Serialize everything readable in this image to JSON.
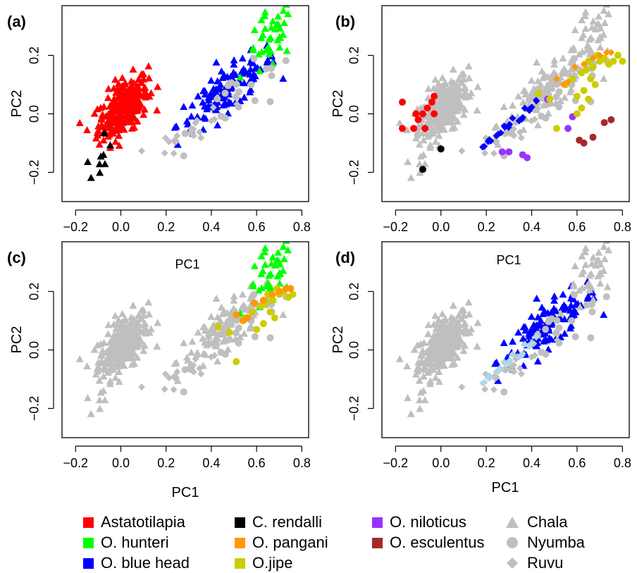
{
  "figure": {
    "panel_labels": [
      "(a)",
      "(b)",
      "(c)",
      "(d)"
    ],
    "x_axis_label": "PC1",
    "y_axis_label": "PC2",
    "x_ticks": [
      "−0.2",
      "0.0",
      "0.2",
      "0.4",
      "0.6",
      "0.8"
    ],
    "y_ticks": [
      "−0.2",
      "0.0",
      "0.2"
    ],
    "background_color": "#d3d3d3"
  },
  "legend": {
    "species": [
      {
        "name": "Astatotilapia",
        "color": "#ff0000"
      },
      {
        "name": "O. hunteri",
        "color": "#00ff00"
      },
      {
        "name": "O. blue head",
        "color": "#0000ff"
      },
      {
        "name": "C. rendalli",
        "color": "#000000"
      },
      {
        "name": "O. pangani",
        "color": "#ff9900"
      },
      {
        "name": "O.jipe",
        "color": "#cccc00"
      },
      {
        "name": "O. niloticus",
        "color": "#9933ff"
      },
      {
        "name": "O. esculentus",
        "color": "#a52a2a"
      }
    ],
    "sites": [
      {
        "name": "Chala",
        "shape": "triangle"
      },
      {
        "name": "Nyumba",
        "shape": "circle"
      },
      {
        "name": "Ruvu",
        "shape": "diamond"
      }
    ],
    "site_color": "#bfbfbf"
  },
  "chart_data": [
    {
      "type": "scatter",
      "panel": "(a)",
      "xlabel": "",
      "ylabel": "PC2",
      "xlim": [
        -0.26,
        0.83
      ],
      "ylim": [
        -0.3,
        0.37
      ],
      "highlight": [
        "Astatotilapia",
        "O. hunteri",
        "O. blue head",
        "C. rendalli"
      ]
    },
    {
      "type": "scatter",
      "panel": "(b)",
      "xlabel": "",
      "ylabel": "PC2",
      "xlim": [
        -0.26,
        0.83
      ],
      "ylim": [
        -0.3,
        0.37
      ],
      "highlight": [
        "Astatotilapia",
        "C. rendalli",
        "O. blue head",
        "O. niloticus",
        "O. esculentus",
        "O.jipe",
        "O. pangani"
      ]
    },
    {
      "type": "scatter",
      "panel": "(c)",
      "xlabel": "PC1",
      "ylabel": "PC2",
      "xlim": [
        -0.26,
        0.83
      ],
      "ylim": [
        -0.3,
        0.37
      ],
      "highlight": [
        "O. hunteri",
        "O. pangani",
        "O.jipe"
      ]
    },
    {
      "type": "scatter",
      "panel": "(d)",
      "xlabel": "PC1",
      "ylabel": "PC2",
      "xlim": [
        -0.26,
        0.83
      ],
      "ylim": [
        -0.3,
        0.37
      ],
      "highlight": [
        "O. blue head",
        "Ruvu"
      ]
    }
  ]
}
